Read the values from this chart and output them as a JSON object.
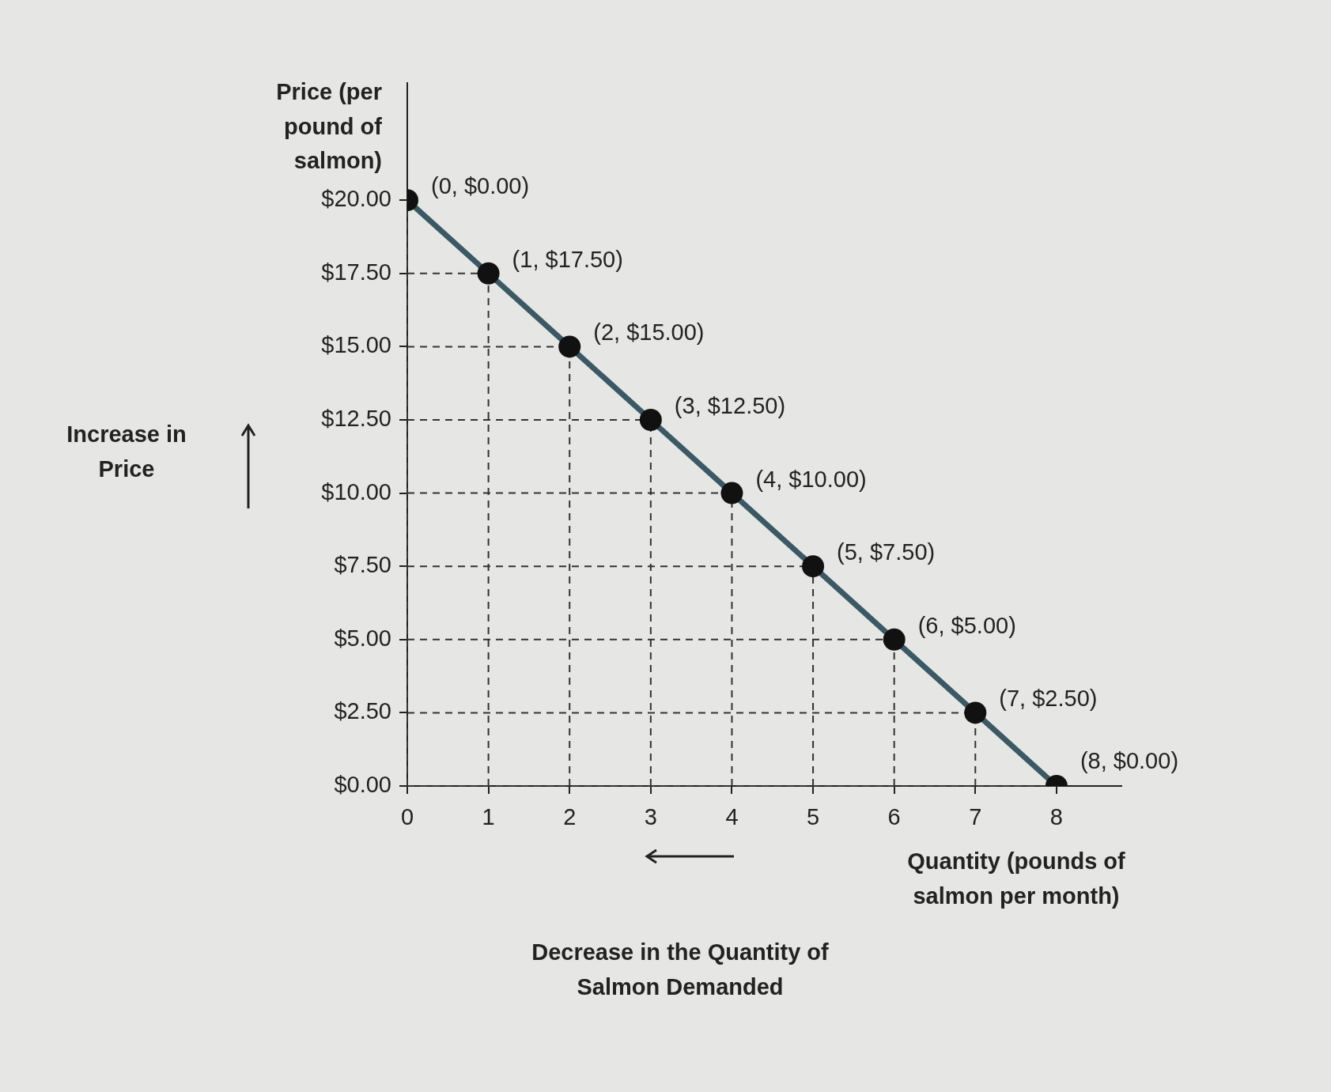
{
  "chart_data": {
    "type": "line",
    "xlabel": "Quantity (pounds of salmon per month)",
    "ylabel": "Price (per pound of salmon)",
    "annotations": [
      "Increase in Price",
      "Decrease in the Quantity of Salmon Demanded"
    ],
    "x": [
      0,
      1,
      2,
      3,
      4,
      5,
      6,
      7,
      8
    ],
    "series": [
      {
        "color": "#3b5964",
        "values": [
          20,
          17.5,
          15,
          12.5,
          10,
          7.5,
          5,
          2.5,
          0
        ],
        "value_labels": [
          "(0, $0.00)",
          "(1, $17.50)",
          "(2, $15.00)",
          "(3, $12.50)",
          "(4, $10.00)",
          "(5, $7.50)",
          "(6, $5.00)",
          "(7, $2.50)",
          "(8, $0.00)"
        ]
      }
    ],
    "xlim": [
      0,
      8.8
    ],
    "xticks": [
      0,
      1,
      2,
      3,
      4,
      5,
      6,
      7,
      8
    ],
    "ylim": [
      0,
      24
    ],
    "yticks": [
      {
        "value": 0,
        "label": "$0.00"
      },
      {
        "value": 2.5,
        "label": "$2.50"
      },
      {
        "value": 5,
        "label": "$5.00"
      },
      {
        "value": 7.5,
        "label": "$7.50"
      },
      {
        "value": 10,
        "label": "$10.00"
      },
      {
        "value": 12.5,
        "label": "$12.50"
      },
      {
        "value": 15,
        "label": "$15.00"
      },
      {
        "value": 17.5,
        "label": "$17.50"
      },
      {
        "value": 20,
        "label": "$20.00"
      }
    ],
    "grid": true,
    "legend": false,
    "marker": "circle",
    "line_style": "solid"
  }
}
